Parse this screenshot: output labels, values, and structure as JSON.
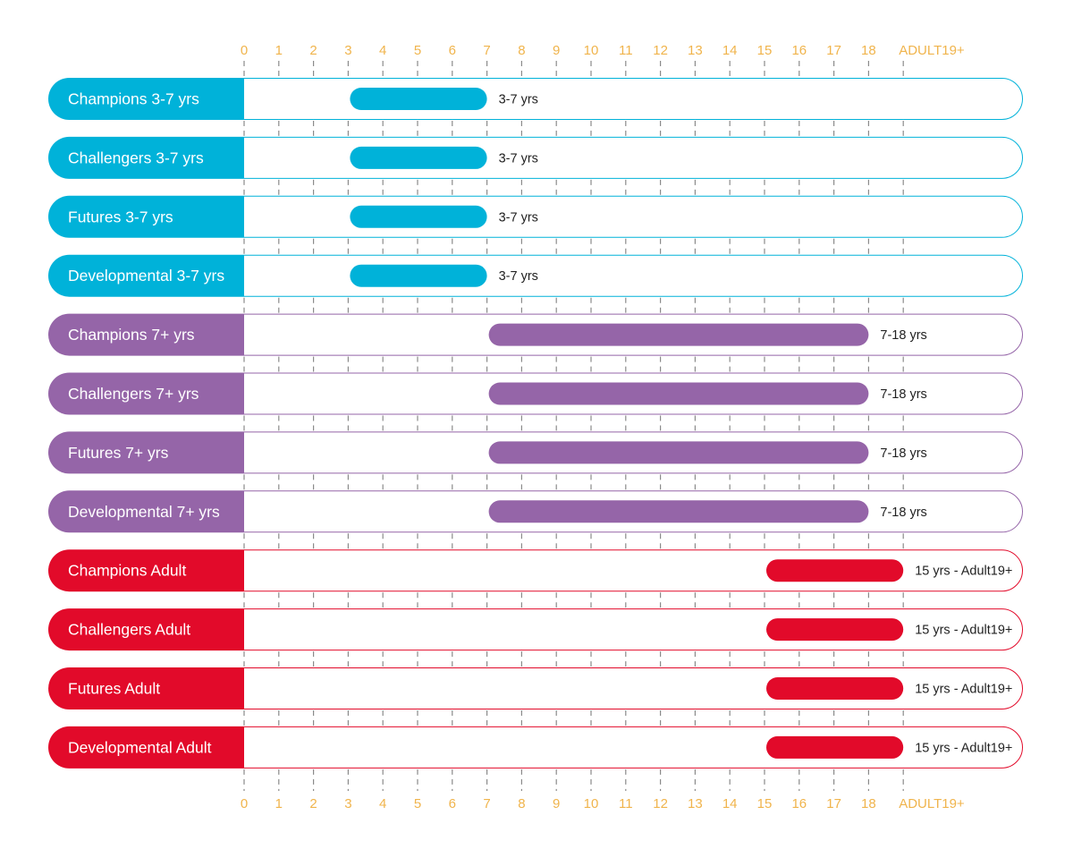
{
  "chart_data": {
    "type": "bar",
    "orientation": "horizontal-range",
    "x_ticks": [
      "0",
      "1",
      "2",
      "3",
      "4",
      "5",
      "6",
      "7",
      "8",
      "9",
      "10",
      "11",
      "12",
      "13",
      "14",
      "15",
      "16",
      "17",
      "18",
      "ADULT19+"
    ],
    "xlim": [
      0,
      19
    ],
    "grid": "dashed vertical ticks between rows",
    "colors": {
      "cyan": "#00b2d9",
      "purple": "#9565a8",
      "red": "#e20a2a",
      "tick": "#f0b44c",
      "grid": "#8a8a8a"
    },
    "rows": [
      {
        "label": "Champions 3-7 yrs",
        "start": 3.0,
        "end": 7.0,
        "range_label": "3-7 yrs",
        "color": "#00b2d9"
      },
      {
        "label": "Challengers 3-7 yrs",
        "start": 3.0,
        "end": 7.0,
        "range_label": "3-7 yrs",
        "color": "#00b2d9"
      },
      {
        "label": "Futures 3-7 yrs",
        "start": 3.0,
        "end": 7.0,
        "range_label": "3-7 yrs",
        "color": "#00b2d9"
      },
      {
        "label": "Developmental 3-7 yrs",
        "start": 3.0,
        "end": 7.0,
        "range_label": "3-7 yrs",
        "color": "#00b2d9"
      },
      {
        "label": "Champions 7+ yrs",
        "start": 7.0,
        "end": 18.0,
        "range_label": "7-18 yrs",
        "color": "#9565a8"
      },
      {
        "label": "Challengers 7+ yrs",
        "start": 7.0,
        "end": 18.0,
        "range_label": "7-18 yrs",
        "color": "#9565a8"
      },
      {
        "label": "Futures 7+ yrs",
        "start": 7.0,
        "end": 18.0,
        "range_label": "7-18 yrs",
        "color": "#9565a8"
      },
      {
        "label": "Developmental 7+ yrs",
        "start": 7.0,
        "end": 18.0,
        "range_label": "7-18 yrs",
        "color": "#9565a8"
      },
      {
        "label": "Champions Adult",
        "start": 15.0,
        "end": 19.0,
        "range_label": "15 yrs - Adult19+",
        "color": "#e20a2a"
      },
      {
        "label": "Challengers Adult",
        "start": 15.0,
        "end": 19.0,
        "range_label": "15 yrs - Adult19+",
        "color": "#e20a2a"
      },
      {
        "label": "Futures Adult",
        "start": 15.0,
        "end": 19.0,
        "range_label": "15 yrs - Adult19+",
        "color": "#e20a2a"
      },
      {
        "label": "Developmental Adult",
        "start": 15.0,
        "end": 19.0,
        "range_label": "15 yrs - Adult19+",
        "color": "#e20a2a"
      }
    ]
  }
}
